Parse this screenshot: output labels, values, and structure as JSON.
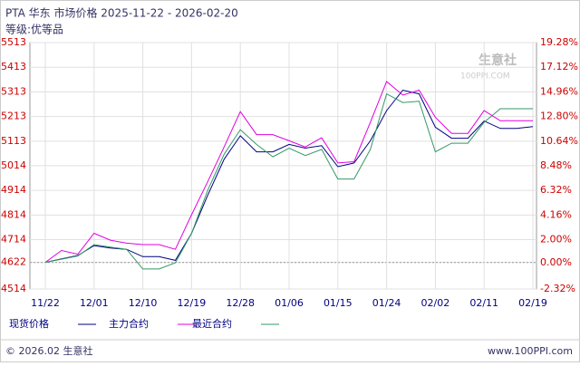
{
  "chart_data": {
    "type": "line",
    "title": "PTA 华东 市场价格 2025-11-22 - 2026-02-20",
    "subtitle": "等级:优等品",
    "x": [
      "11/22",
      null,
      null,
      "12/01",
      null,
      null,
      "12/10",
      null,
      null,
      "12/19",
      null,
      null,
      "12/28",
      null,
      null,
      "01/06",
      null,
      null,
      "01/15",
      null,
      null,
      "01/24",
      null,
      null,
      "02/02",
      null,
      null,
      "02/11",
      null,
      null,
      "02/19"
    ],
    "series": [
      {
        "name": "现货价格",
        "color": "#000080",
        "values": [
          4622,
          4636,
          4650,
          4690,
          4680,
          4675,
          4645,
          4645,
          4630,
          4740,
          4895,
          5040,
          5135,
          5070,
          5070,
          5100,
          5085,
          5095,
          5010,
          5025,
          5115,
          5237,
          5320,
          5305,
          5170,
          5125,
          5125,
          5195,
          5165,
          5165,
          5172
        ]
      },
      {
        "name": "主力合约",
        "color": "#e000e0",
        "values": [
          4622,
          4670,
          4655,
          4740,
          4712,
          4700,
          4694,
          4694,
          4675,
          4815,
          4950,
          5090,
          5233,
          5140,
          5140,
          5115,
          5090,
          5127,
          5025,
          5030,
          5190,
          5355,
          5300,
          5320,
          5210,
          5145,
          5145,
          5237,
          5196,
          5196,
          5196
        ]
      },
      {
        "name": "最近合约",
        "color": "#339966",
        "values": [
          4622,
          4635,
          4648,
          4694,
          4684,
          4675,
          4595,
          4595,
          4620,
          4740,
          4915,
          5060,
          5160,
          5100,
          5050,
          5085,
          5055,
          5080,
          4960,
          4960,
          5080,
          5305,
          5270,
          5275,
          5070,
          5105,
          5105,
          5190,
          5245,
          5245,
          5245
        ]
      }
    ],
    "ylim": [
      4514,
      5513
    ],
    "yticks": [
      4514,
      4622,
      4714,
      4814,
      4914,
      5014,
      5113,
      5213,
      5313,
      5413,
      5513
    ],
    "y2lim": [
      -2.32,
      19.28
    ],
    "y2ticks": [
      {
        "value": -2.32,
        "label": "-2.32%"
      },
      {
        "value": 0,
        "label": "0.00%"
      },
      {
        "value": 2,
        "label": "2.00%"
      },
      {
        "value": 4.16,
        "label": "4.16%"
      },
      {
        "value": 6.32,
        "label": "6.32%"
      },
      {
        "value": 8.48,
        "label": "8.48%"
      },
      {
        "value": 10.64,
        "label": "10.64%"
      },
      {
        "value": 12.8,
        "label": "12.80%"
      },
      {
        "value": 14.96,
        "label": "14.96%"
      },
      {
        "value": 17.12,
        "label": "17.12%"
      },
      {
        "value": 19.28,
        "label": "19.28%"
      }
    ],
    "grid": true
  },
  "watermark": {
    "brand": "生意社",
    "site": "100PPI.COM"
  },
  "footer": {
    "copyright": "© 2026.02 生意社",
    "website": "www.100PPI.com"
  }
}
